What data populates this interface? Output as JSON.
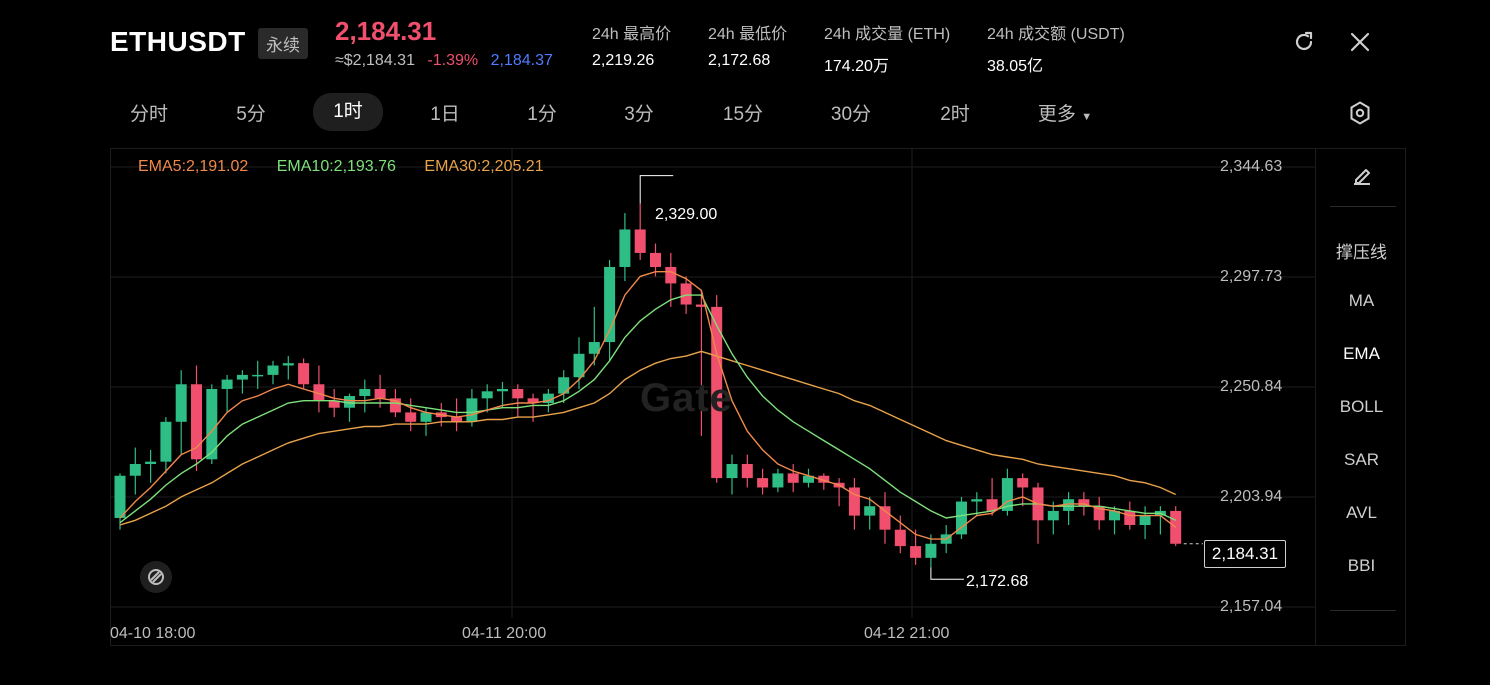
{
  "header": {
    "symbol": "ETHUSDT",
    "badge": "永续",
    "price": "2,184.31",
    "usd_value": "≈$2,184.31",
    "change": "-1.39%",
    "mark_price": "2,184.37",
    "stats": [
      {
        "label": "24h 最高价",
        "value": "2,219.26"
      },
      {
        "label": "24h 最低价",
        "value": "2,172.68"
      },
      {
        "label": "24h 成交量 (ETH)",
        "value": "174.20万"
      },
      {
        "label": "24h 成交额 (USDT)",
        "value": "38.05亿"
      }
    ]
  },
  "tabs": [
    {
      "label": "分时"
    },
    {
      "label": "5分"
    },
    {
      "label": "1时"
    },
    {
      "label": "1日"
    },
    {
      "label": "1分"
    },
    {
      "label": "3分"
    },
    {
      "label": "15分"
    },
    {
      "label": "30分"
    },
    {
      "label": "2时"
    },
    {
      "label": "更多"
    }
  ],
  "active_tab": "1时",
  "indicators": {
    "drawing_tool": "pencil-icon",
    "items": [
      {
        "label": "撑压线"
      },
      {
        "label": "MA"
      },
      {
        "label": "EMA"
      },
      {
        "label": "BOLL"
      },
      {
        "label": "SAR"
      },
      {
        "label": "AVL"
      },
      {
        "label": "BBI"
      }
    ],
    "active": "EMA"
  },
  "legend": {
    "ema5": "EMA5:2,191.02",
    "ema10": "EMA10:2,193.76",
    "ema30": "EMA30:2,205.21"
  },
  "colors": {
    "up": "#2ebd85",
    "down": "#f0506e",
    "ema5": "#f0884a",
    "ema10": "#7ee07a",
    "ema30": "#e8a24a",
    "accent_blue": "#4f7cff"
  },
  "chart_data": {
    "type": "candlestick",
    "y_ticks": [
      "2,344.63",
      "2,297.73",
      "2,250.84",
      "2,203.94",
      "2,157.04"
    ],
    "x_ticks": [
      "04-10 18:00",
      "04-11 20:00",
      "04-12 21:00"
    ],
    "ylim": [
      2157.04,
      2344.63
    ],
    "high_annotation": "2,329.00",
    "low_annotation": "2,172.68",
    "current_price_label": "2,184.31",
    "candles": [
      [
        2195,
        2214,
        2190,
        2213
      ],
      [
        2213,
        2225,
        2205,
        2218
      ],
      [
        2218,
        2224,
        2210,
        2219
      ],
      [
        2219,
        2238,
        2214,
        2236
      ],
      [
        2236,
        2258,
        2222,
        2252
      ],
      [
        2252,
        2260,
        2215,
        2220
      ],
      [
        2220,
        2252,
        2218,
        2250
      ],
      [
        2250,
        2256,
        2240,
        2254
      ],
      [
        2254,
        2258,
        2248,
        2256
      ],
      [
        2256,
        2262,
        2250,
        2256
      ],
      [
        2256,
        2262,
        2252,
        2260
      ],
      [
        2260,
        2264,
        2254,
        2261
      ],
      [
        2261,
        2263,
        2250,
        2252
      ],
      [
        2252,
        2260,
        2240,
        2245
      ],
      [
        2245,
        2250,
        2238,
        2242
      ],
      [
        2242,
        2248,
        2236,
        2247
      ],
      [
        2247,
        2254,
        2240,
        2250
      ],
      [
        2250,
        2256,
        2242,
        2246
      ],
      [
        2246,
        2250,
        2238,
        2240
      ],
      [
        2240,
        2246,
        2232,
        2236
      ],
      [
        2236,
        2242,
        2230,
        2240
      ],
      [
        2240,
        2244,
        2234,
        2238
      ],
      [
        2238,
        2246,
        2232,
        2236
      ],
      [
        2236,
        2250,
        2234,
        2246
      ],
      [
        2246,
        2252,
        2240,
        2249
      ],
      [
        2249,
        2253,
        2242,
        2250
      ],
      [
        2250,
        2252,
        2238,
        2246
      ],
      [
        2246,
        2248,
        2236,
        2244
      ],
      [
        2244,
        2250,
        2240,
        2248
      ],
      [
        2248,
        2258,
        2244,
        2255
      ],
      [
        2255,
        2272,
        2250,
        2265
      ],
      [
        2265,
        2285,
        2260,
        2270
      ],
      [
        2270,
        2305,
        2262,
        2302
      ],
      [
        2302,
        2325,
        2296,
        2318
      ],
      [
        2318,
        2329,
        2305,
        2308
      ],
      [
        2308,
        2312,
        2298,
        2302
      ],
      [
        2302,
        2308,
        2285,
        2295
      ],
      [
        2295,
        2298,
        2282,
        2286
      ],
      [
        2286,
        2292,
        2230,
        2285
      ],
      [
        2285,
        2290,
        2210,
        2212
      ],
      [
        2212,
        2222,
        2205,
        2218
      ],
      [
        2218,
        2222,
        2208,
        2212
      ],
      [
        2212,
        2216,
        2205,
        2208
      ],
      [
        2208,
        2216,
        2206,
        2214
      ],
      [
        2214,
        2218,
        2206,
        2210
      ],
      [
        2210,
        2216,
        2208,
        2213
      ],
      [
        2213,
        2214,
        2207,
        2210
      ],
      [
        2210,
        2212,
        2200,
        2208
      ],
      [
        2208,
        2212,
        2190,
        2196
      ],
      [
        2196,
        2204,
        2190,
        2200
      ],
      [
        2200,
        2206,
        2184,
        2190
      ],
      [
        2190,
        2196,
        2180,
        2183
      ],
      [
        2183,
        2190,
        2175,
        2178
      ],
      [
        2178,
        2188,
        2174,
        2184
      ],
      [
        2184,
        2192,
        2180,
        2188
      ],
      [
        2188,
        2204,
        2186,
        2202
      ],
      [
        2202,
        2206,
        2196,
        2203
      ],
      [
        2203,
        2212,
        2196,
        2198
      ],
      [
        2198,
        2216,
        2196,
        2212
      ],
      [
        2212,
        2214,
        2200,
        2208
      ],
      [
        2208,
        2210,
        2184,
        2194
      ],
      [
        2194,
        2202,
        2188,
        2198
      ],
      [
        2198,
        2206,
        2192,
        2203
      ],
      [
        2203,
        2206,
        2196,
        2200
      ],
      [
        2200,
        2204,
        2190,
        2194
      ],
      [
        2194,
        2200,
        2188,
        2198
      ],
      [
        2198,
        2202,
        2190,
        2192
      ],
      [
        2192,
        2200,
        2186,
        2196
      ],
      [
        2196,
        2200,
        2188,
        2198
      ],
      [
        2198,
        2200,
        2183,
        2184
      ]
    ],
    "ema5": [
      2195,
      2202,
      2208,
      2215,
      2222,
      2225,
      2232,
      2240,
      2245,
      2247,
      2250,
      2252,
      2250,
      2248,
      2246,
      2245,
      2245,
      2246,
      2245,
      2242,
      2240,
      2239,
      2238,
      2239,
      2241,
      2243,
      2244,
      2244,
      2245,
      2248,
      2254,
      2262,
      2275,
      2290,
      2298,
      2300,
      2300,
      2297,
      2292,
      2265,
      2245,
      2232,
      2224,
      2218,
      2215,
      2213,
      2211,
      2209,
      2205,
      2203,
      2198,
      2193,
      2188,
      2186,
      2186,
      2191,
      2196,
      2197,
      2202,
      2204,
      2201,
      2200,
      2201,
      2201,
      2199,
      2198,
      2196,
      2196,
      2196,
      2191
    ],
    "ema10": [
      2193,
      2198,
      2203,
      2209,
      2214,
      2218,
      2223,
      2230,
      2235,
      2238,
      2241,
      2244,
      2245,
      2245,
      2245,
      2244,
      2244,
      2244,
      2244,
      2243,
      2242,
      2241,
      2240,
      2240,
      2241,
      2242,
      2242,
      2243,
      2243,
      2245,
      2249,
      2254,
      2262,
      2272,
      2279,
      2284,
      2288,
      2290,
      2290,
      2277,
      2265,
      2255,
      2247,
      2241,
      2236,
      2232,
      2228,
      2224,
      2220,
      2216,
      2211,
      2206,
      2202,
      2198,
      2195,
      2196,
      2197,
      2198,
      2200,
      2201,
      2201,
      2200,
      2200,
      2200,
      2200,
      2199,
      2198,
      2197,
      2197,
      2194
    ],
    "ema30": [
      2192,
      2194,
      2197,
      2200,
      2204,
      2207,
      2210,
      2214,
      2218,
      2221,
      2224,
      2227,
      2229,
      2231,
      2232,
      2233,
      2234,
      2234,
      2235,
      2235,
      2235,
      2236,
      2236,
      2236,
      2237,
      2237,
      2238,
      2238,
      2239,
      2240,
      2242,
      2244,
      2248,
      2254,
      2258,
      2261,
      2263,
      2264,
      2266,
      2264,
      2262,
      2260,
      2258,
      2256,
      2254,
      2252,
      2250,
      2248,
      2245,
      2243,
      2240,
      2237,
      2234,
      2231,
      2228,
      2226,
      2224,
      2222,
      2221,
      2220,
      2218,
      2217,
      2216,
      2215,
      2214,
      2213,
      2211,
      2210,
      2208,
      2205
    ]
  }
}
